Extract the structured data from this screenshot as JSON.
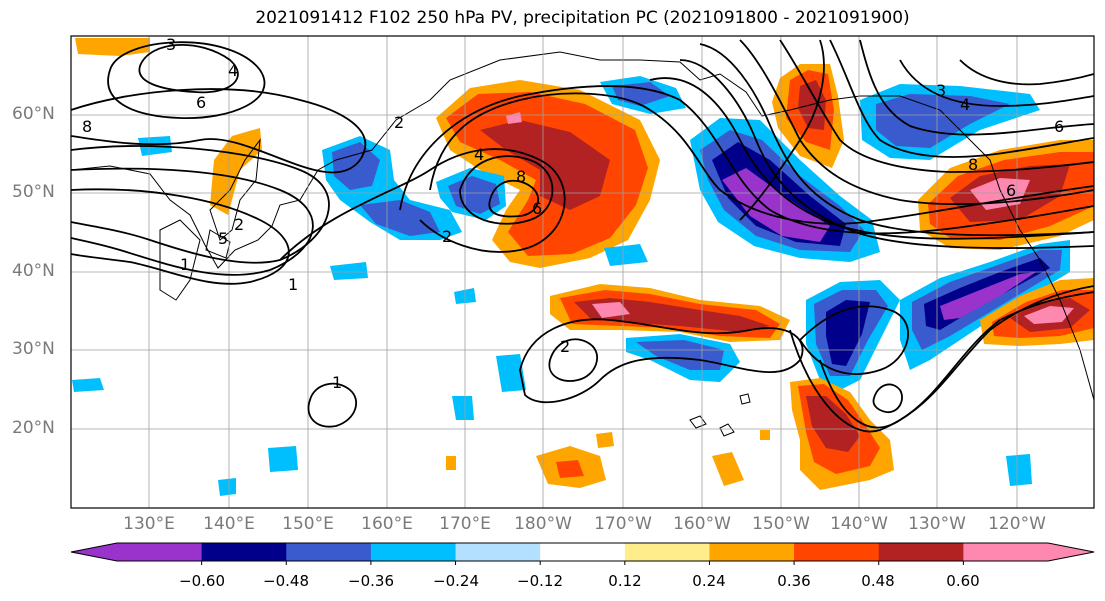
{
  "title": "2021091412 F102 250 hPa PV, precipitation PC (2021091800 - 2021091900)",
  "lat_labels": [
    "60°N",
    "50°N",
    "40°N",
    "30°N",
    "20°N"
  ],
  "lon_labels": [
    "130°E",
    "140°E",
    "150°E",
    "160°E",
    "170°E",
    "180°W",
    "170°W",
    "160°W",
    "150°W",
    "140°W",
    "130°W",
    "120°W"
  ],
  "colorbar": {
    "colors": [
      "#9933cc",
      "#00008b",
      "#3a5bcd",
      "#00bfff",
      "#b3e0ff",
      "#ffffff",
      "#ffec8b",
      "#ffa500",
      "#ff4500",
      "#b22222",
      "#ff88b0"
    ],
    "tick_labels": [
      "−0.60",
      "−0.48",
      "−0.36",
      "−0.24",
      "−0.12",
      "0.12",
      "0.24",
      "0.36",
      "0.48",
      "0.60"
    ]
  },
  "contour_labels": [
    "3",
    "4",
    "6",
    "8",
    "1",
    "2",
    "1",
    "4",
    "8",
    "2",
    "3",
    "4",
    "6",
    "8",
    "6",
    "2",
    "1",
    "5",
    "2",
    "6"
  ]
}
